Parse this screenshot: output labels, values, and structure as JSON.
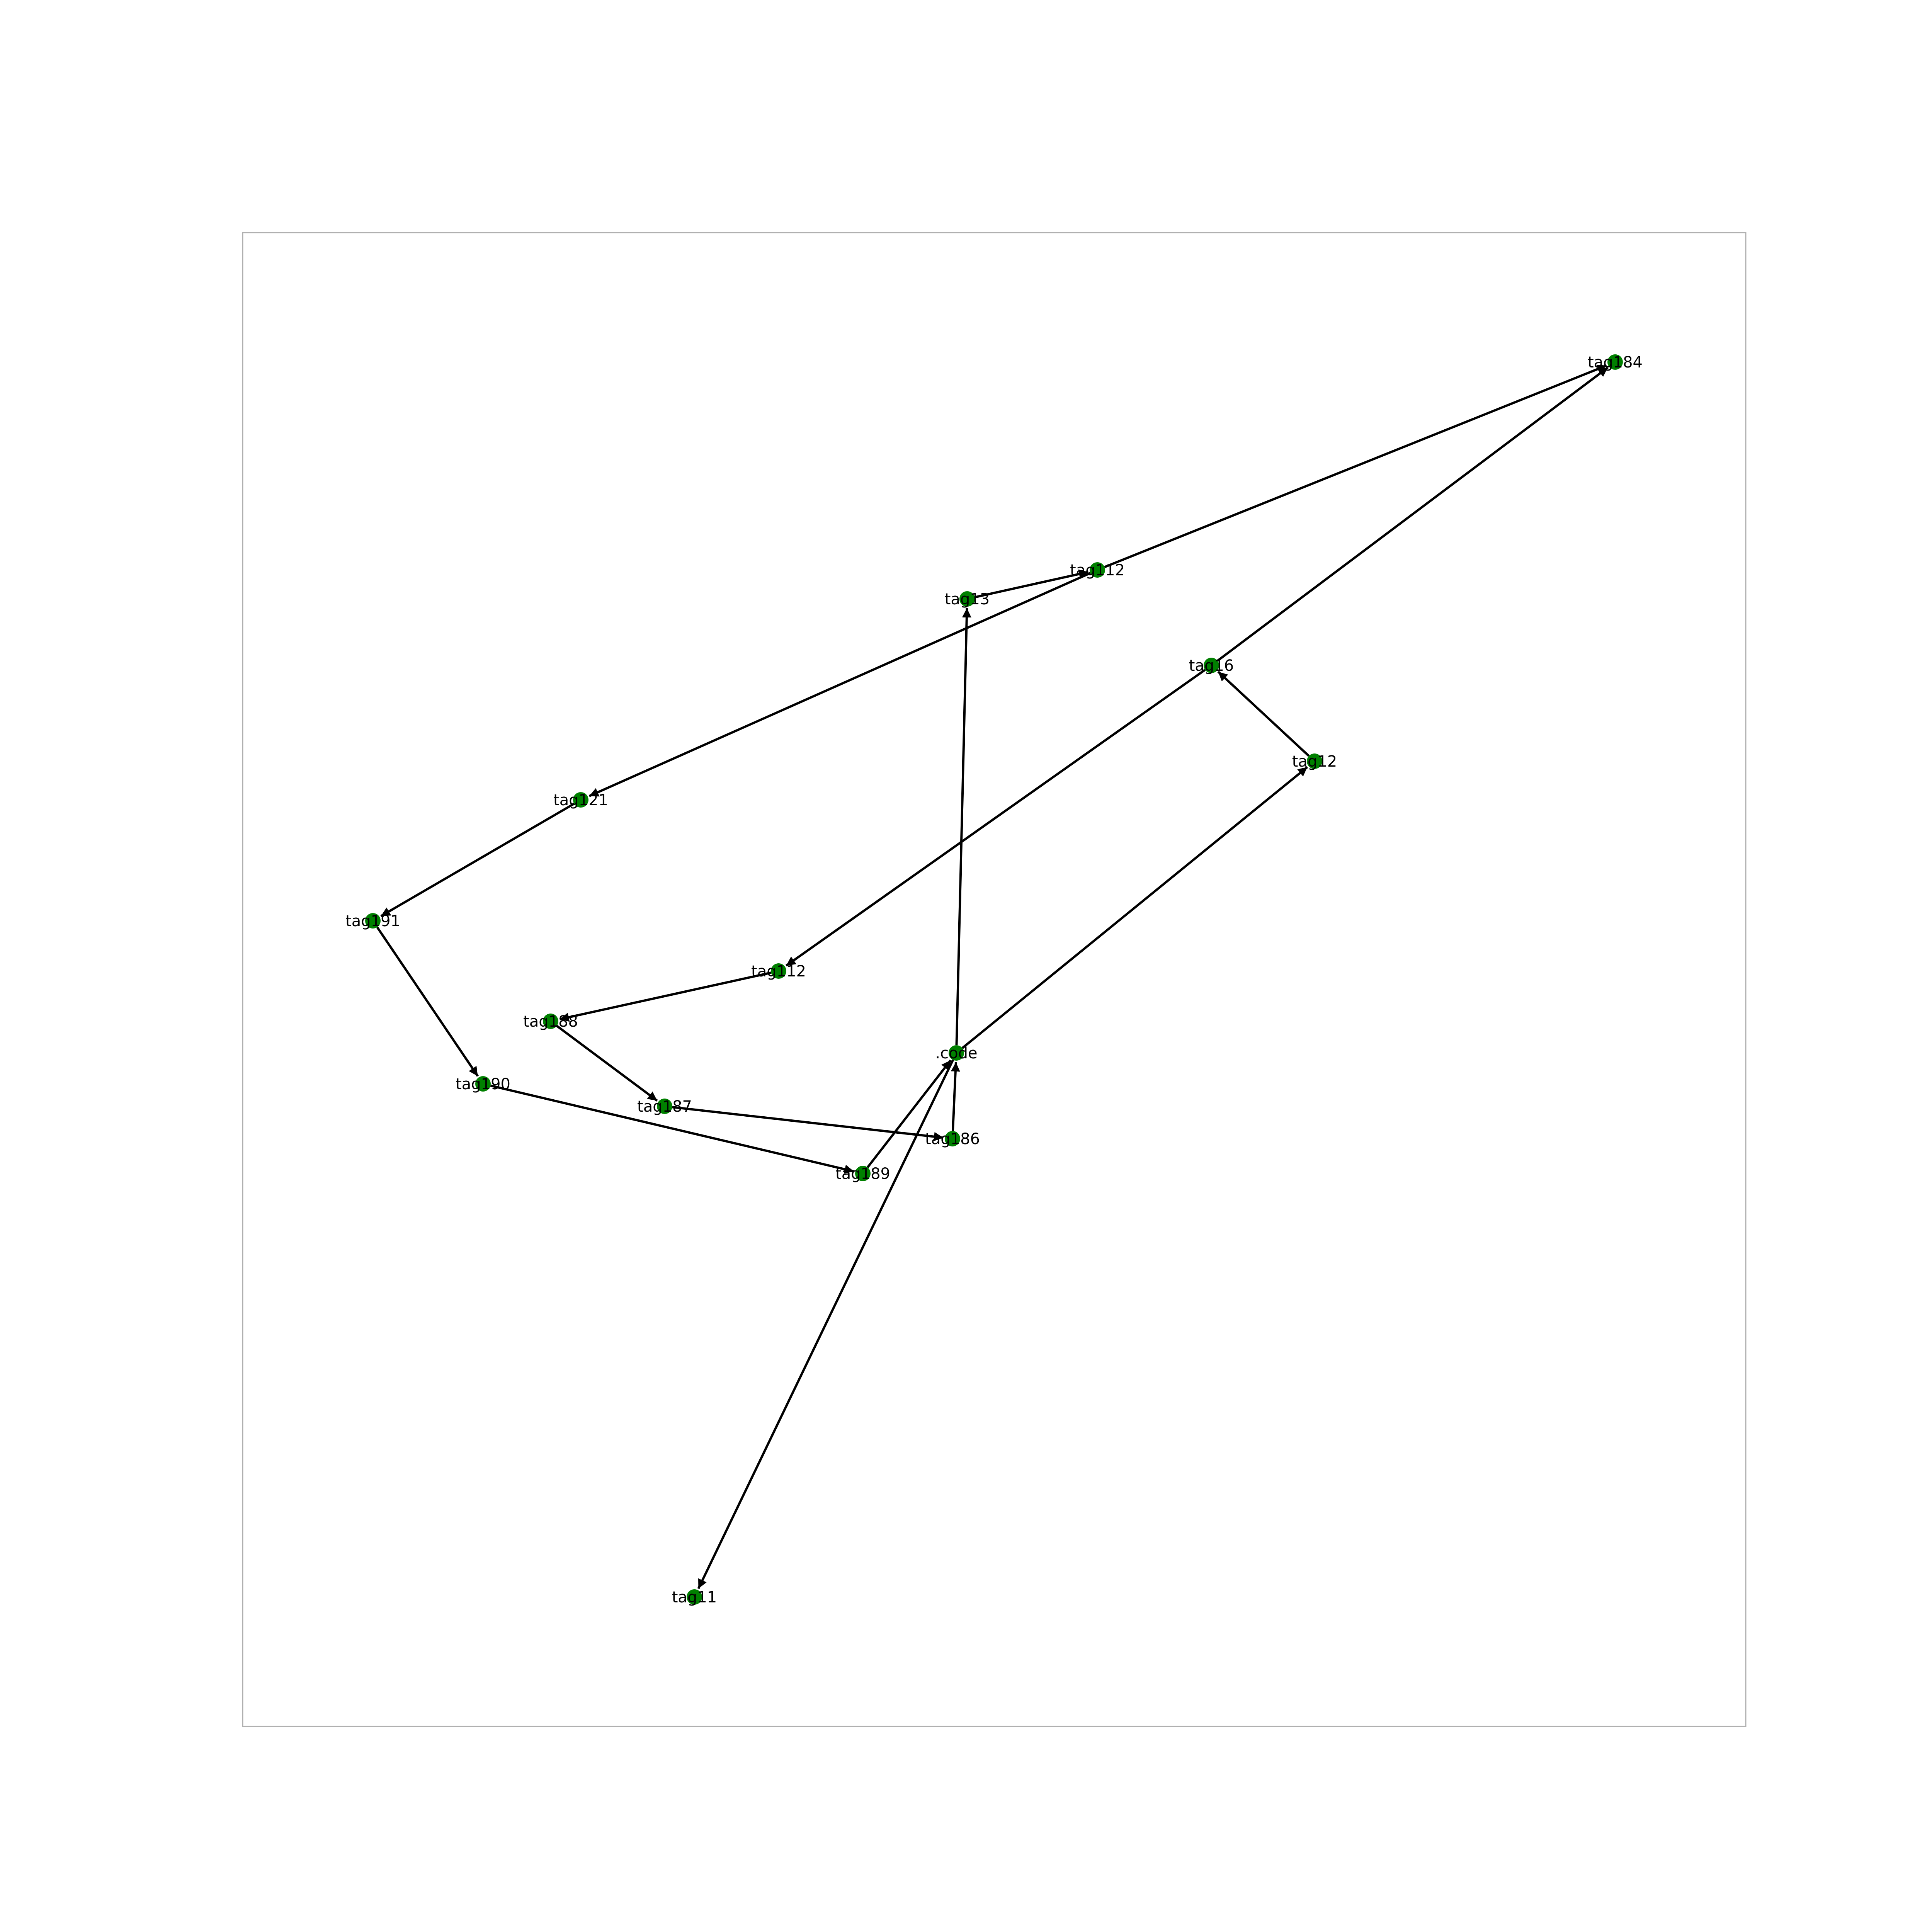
{
  "diagram": {
    "node_color": "#008000",
    "edge_color": "#000000",
    "nodes": [
      {
        "id": "tag184",
        "label": "tag184"
      },
      {
        "id": "tag112a",
        "label": "tag112"
      },
      {
        "id": "tag13",
        "label": "tag13"
      },
      {
        "id": "tag16",
        "label": "tag16"
      },
      {
        "id": "tag12",
        "label": "tag12"
      },
      {
        "id": "tag121",
        "label": "tag121"
      },
      {
        "id": "tag191",
        "label": "tag191"
      },
      {
        "id": "tag112b",
        "label": "tag112"
      },
      {
        "id": "tag188",
        "label": "tag188"
      },
      {
        "id": "code",
        "label": ".code"
      },
      {
        "id": "tag190",
        "label": "tag190"
      },
      {
        "id": "tag187",
        "label": "tag187"
      },
      {
        "id": "tag186",
        "label": "tag186"
      },
      {
        "id": "tag189",
        "label": "tag189"
      },
      {
        "id": "tag11",
        "label": "tag11"
      }
    ],
    "edges": [
      {
        "source": "tag13",
        "target": "tag112a"
      },
      {
        "source": "tag112a",
        "target": "tag184"
      },
      {
        "source": "tag16",
        "target": "tag184"
      },
      {
        "source": "tag12",
        "target": "tag16"
      },
      {
        "source": "code",
        "target": "tag12"
      },
      {
        "source": "code",
        "target": "tag13"
      },
      {
        "source": "tag112a",
        "target": "tag121"
      },
      {
        "source": "tag121",
        "target": "tag191"
      },
      {
        "source": "tag191",
        "target": "tag190"
      },
      {
        "source": "tag16",
        "target": "tag112b"
      },
      {
        "source": "tag112b",
        "target": "tag188"
      },
      {
        "source": "tag188",
        "target": "tag187"
      },
      {
        "source": "tag187",
        "target": "tag186"
      },
      {
        "source": "tag186",
        "target": "code"
      },
      {
        "source": "tag190",
        "target": "tag189"
      },
      {
        "source": "tag189",
        "target": "code"
      },
      {
        "source": "code",
        "target": "tag11"
      }
    ]
  }
}
